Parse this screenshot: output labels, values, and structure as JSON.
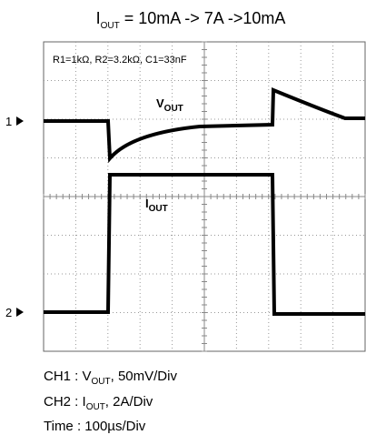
{
  "title": {
    "main": "I",
    "sub": "OUT",
    "rest": " = 10mA -> 7A ->10mA"
  },
  "annotation": "R1=1kΩ, R2=3.2kΩ, C1=33nF",
  "traces": [
    {
      "marker": "1",
      "label": "V",
      "sub": "OUT"
    },
    {
      "marker": "2",
      "label": "I",
      "sub": "OUT"
    }
  ],
  "legend": [
    {
      "text": "CH1 : V",
      "sub": "OUT",
      "rest": ", 50mV/Div"
    },
    {
      "text": "CH2 : I",
      "sub": "OUT",
      "rest": ", 2A/Div"
    },
    {
      "text": "Time : 100µs/Div"
    }
  ]
}
